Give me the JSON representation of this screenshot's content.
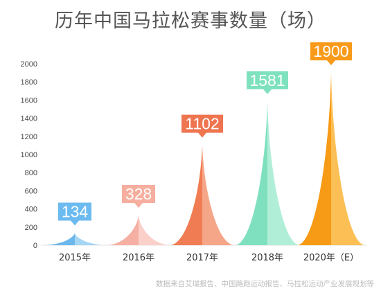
{
  "chart_data": {
    "type": "area",
    "title": "历年中国马拉松赛事数量（场）",
    "categories": [
      "2015年",
      "2016年",
      "2017年",
      "2018年",
      "2020年（E）"
    ],
    "values": [
      134,
      328,
      1102,
      1581,
      1900
    ],
    "value_labels": [
      "134",
      "328",
      "1102",
      "1581",
      "1900"
    ],
    "ylim": [
      0,
      2000
    ],
    "yticks": [
      0,
      200,
      400,
      600,
      800,
      1000,
      1200,
      1400,
      1600,
      1800,
      2000
    ],
    "xlabel": "",
    "ylabel": "",
    "grid": false,
    "legend": "none",
    "colors": [
      {
        "left": "#6cb8ec",
        "right": "#a6d6f5",
        "badge": "#6cbbf0"
      },
      {
        "left": "#f6b0a3",
        "right": "#fad0c8",
        "badge": "#f6ae9e"
      },
      {
        "left": "#f07c53",
        "right": "#f6a688",
        "badge": "#ee7550"
      },
      {
        "left": "#7fe0bf",
        "right": "#b0eed8",
        "badge": "#7fe2bf"
      },
      {
        "left": "#f79a15",
        "right": "#fbbf55",
        "badge": "#f99a1a"
      }
    ]
  },
  "source_note": "数据来自艾瑞报告、中国路跑运动报告、马拉松运动产业发展规划等"
}
